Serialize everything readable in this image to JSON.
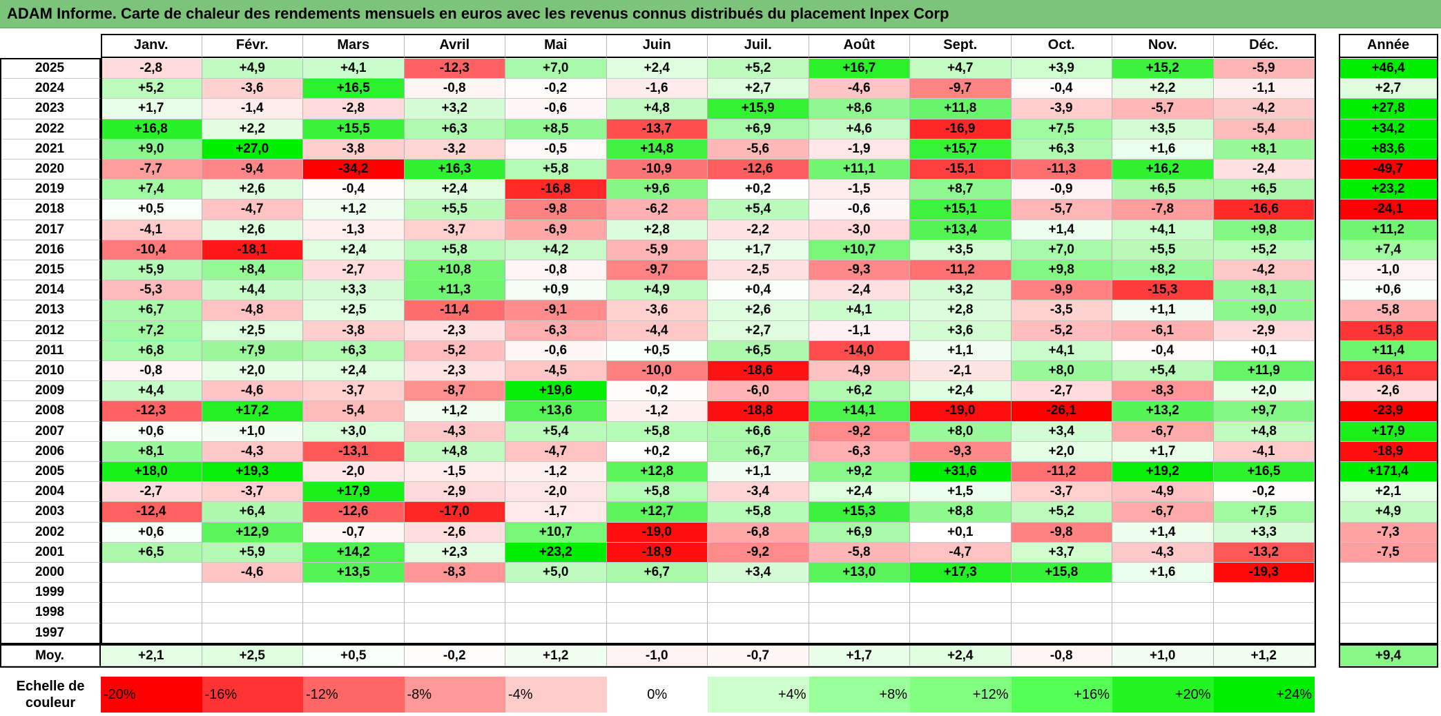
{
  "title": "ADAM Informe. Carte de chaleur des rendements mensuels en euros avec les revenus connus distribués du placement Inpex Corp",
  "chart_data": {
    "type": "heatmap",
    "columns": [
      "Janv.",
      "Févr.",
      "Mars",
      "Avril",
      "Mai",
      "Juin",
      "Juil.",
      "Août",
      "Sept.",
      "Oct.",
      "Nov.",
      "Déc."
    ],
    "year_column_label": "Année",
    "rows": [
      {
        "year": "2025",
        "values": [
          "-2,8",
          "+4,9",
          "+4,1",
          "-12,3",
          "+7,0",
          "+2,4",
          "+5,2",
          "+16,7",
          "+4,7",
          "+3,9",
          "+15,2",
          "-5,9"
        ],
        "annual": "+46,4"
      },
      {
        "year": "2024",
        "values": [
          "+5,2",
          "-3,6",
          "+16,5",
          "-0,8",
          "-0,2",
          "-1,6",
          "+2,7",
          "-4,6",
          "-9,7",
          "-0,4",
          "+2,2",
          "-1,1"
        ],
        "annual": "+2,7"
      },
      {
        "year": "2023",
        "values": [
          "+1,7",
          "-1,4",
          "-2,8",
          "+3,2",
          "-0,6",
          "+4,8",
          "+15,9",
          "+8,6",
          "+11,8",
          "-3,9",
          "-5,7",
          "-4,2"
        ],
        "annual": "+27,8"
      },
      {
        "year": "2022",
        "values": [
          "+16,8",
          "+2,2",
          "+15,5",
          "+6,3",
          "+8,5",
          "-13,7",
          "+6,9",
          "+4,6",
          "-16,9",
          "+7,5",
          "+3,5",
          "-5,4"
        ],
        "annual": "+34,2"
      },
      {
        "year": "2021",
        "values": [
          "+9,0",
          "+27,0",
          "-3,8",
          "-3,2",
          "-0,5",
          "+14,8",
          "-5,6",
          "-1,9",
          "+15,7",
          "+6,3",
          "+1,6",
          "+8,1"
        ],
        "annual": "+83,6"
      },
      {
        "year": "2020",
        "values": [
          "-7,7",
          "-9,4",
          "-34,2",
          "+16,3",
          "+5,8",
          "-10,9",
          "-12,6",
          "+11,1",
          "-15,1",
          "-11,3",
          "+16,2",
          "-2,4"
        ],
        "annual": "-49,7"
      },
      {
        "year": "2019",
        "values": [
          "+7,4",
          "+2,6",
          "-0,4",
          "+2,4",
          "-16,8",
          "+9,6",
          "+0,2",
          "-1,5",
          "+8,7",
          "-0,9",
          "+6,5",
          "+6,5"
        ],
        "annual": "+23,2"
      },
      {
        "year": "2018",
        "values": [
          "+0,5",
          "-4,7",
          "+1,2",
          "+5,5",
          "-9,8",
          "-6,2",
          "+5,4",
          "-0,6",
          "+15,1",
          "-5,7",
          "-7,8",
          "-16,6"
        ],
        "annual": "-24,1"
      },
      {
        "year": "2017",
        "values": [
          "-4,1",
          "+2,6",
          "-1,3",
          "-3,7",
          "-6,9",
          "+2,8",
          "-2,2",
          "-3,0",
          "+13,4",
          "+1,4",
          "+4,1",
          "+9,8"
        ],
        "annual": "+11,2"
      },
      {
        "year": "2016",
        "values": [
          "-10,4",
          "-18,1",
          "+2,4",
          "+5,8",
          "+4,2",
          "-5,9",
          "+1,7",
          "+10,7",
          "+3,5",
          "+7,0",
          "+5,5",
          "+5,2"
        ],
        "annual": "+7,4"
      },
      {
        "year": "2015",
        "values": [
          "+5,9",
          "+8,4",
          "-2,7",
          "+10,8",
          "-0,8",
          "-9,7",
          "-2,5",
          "-9,3",
          "-11,2",
          "+9,8",
          "+8,2",
          "-4,2"
        ],
        "annual": "-1,0"
      },
      {
        "year": "2014",
        "values": [
          "-5,3",
          "+4,4",
          "+3,3",
          "+11,3",
          "+0,9",
          "+4,9",
          "+0,4",
          "-2,4",
          "+3,2",
          "-9,9",
          "-15,3",
          "+8,1"
        ],
        "annual": "+0,6"
      },
      {
        "year": "2013",
        "values": [
          "+6,7",
          "-4,8",
          "+2,5",
          "-11,4",
          "-9,1",
          "-3,6",
          "+2,6",
          "+4,1",
          "+2,8",
          "-3,5",
          "+1,1",
          "+9,0"
        ],
        "annual": "-5,8"
      },
      {
        "year": "2012",
        "values": [
          "+7,2",
          "+2,5",
          "-3,8",
          "-2,3",
          "-6,3",
          "-4,4",
          "+2,7",
          "-1,1",
          "+3,6",
          "-5,2",
          "-6,1",
          "-2,9"
        ],
        "annual": "-15,8"
      },
      {
        "year": "2011",
        "values": [
          "+6,8",
          "+7,9",
          "+6,3",
          "-5,2",
          "-0,6",
          "+0,5",
          "+6,5",
          "-14,0",
          "+1,1",
          "+4,1",
          "-0,4",
          "+0,1"
        ],
        "annual": "+11,4"
      },
      {
        "year": "2010",
        "values": [
          "-0,8",
          "+2,0",
          "+2,4",
          "-2,3",
          "-4,5",
          "-10,0",
          "-18,6",
          "-4,9",
          "-2,1",
          "+8,0",
          "+5,4",
          "+11,9"
        ],
        "annual": "-16,1"
      },
      {
        "year": "2009",
        "values": [
          "+4,4",
          "-4,6",
          "-3,7",
          "-8,7",
          "+19,6",
          "-0,2",
          "-6,0",
          "+6,2",
          "+2,4",
          "-2,7",
          "-8,3",
          "+2,0"
        ],
        "annual": "-2,6"
      },
      {
        "year": "2008",
        "values": [
          "-12,3",
          "+17,2",
          "-5,4",
          "+1,2",
          "+13,6",
          "-1,2",
          "-18,8",
          "+14,1",
          "-19,0",
          "-26,1",
          "+13,2",
          "+9,7"
        ],
        "annual": "-23,9"
      },
      {
        "year": "2007",
        "values": [
          "+0,6",
          "+1,0",
          "+3,0",
          "-4,3",
          "+5,4",
          "+5,8",
          "+6,6",
          "-9,2",
          "+8,0",
          "+3,4",
          "-6,7",
          "+4,8"
        ],
        "annual": "+17,9"
      },
      {
        "year": "2006",
        "values": [
          "+8,1",
          "-4,3",
          "-13,1",
          "+4,8",
          "-4,7",
          "+0,2",
          "+6,7",
          "-6,3",
          "-9,3",
          "+2,0",
          "+1,7",
          "-4,1"
        ],
        "annual": "-18,9"
      },
      {
        "year": "2005",
        "values": [
          "+18,0",
          "+19,3",
          "-2,0",
          "-1,5",
          "-1,2",
          "+12,8",
          "+1,1",
          "+9,2",
          "+31,6",
          "-11,2",
          "+19,2",
          "+16,5"
        ],
        "annual": "+171,4"
      },
      {
        "year": "2004",
        "values": [
          "-2,7",
          "-3,7",
          "+17,9",
          "-2,9",
          "-2,0",
          "+5,8",
          "-3,4",
          "+2,4",
          "+1,5",
          "-3,7",
          "-4,9",
          "-0,2"
        ],
        "annual": "+2,1"
      },
      {
        "year": "2003",
        "values": [
          "-12,4",
          "+6,4",
          "-12,6",
          "-17,0",
          "-1,7",
          "+12,7",
          "+5,8",
          "+15,3",
          "+8,8",
          "+5,2",
          "-6,7",
          "+7,5"
        ],
        "annual": "+4,9"
      },
      {
        "year": "2002",
        "values": [
          "+0,6",
          "+12,9",
          "-0,7",
          "-2,6",
          "+10,7",
          "-19,0",
          "-6,8",
          "+6,9",
          "+0,1",
          "-9,8",
          "+1,4",
          "+3,3"
        ],
        "annual": "-7,3"
      },
      {
        "year": "2001",
        "values": [
          "+6,5",
          "+5,9",
          "+14,2",
          "+2,3",
          "+23,2",
          "-18,9",
          "-9,2",
          "-5,8",
          "-4,7",
          "+3,7",
          "-4,3",
          "-13,2"
        ],
        "annual": "-7,5"
      },
      {
        "year": "2000",
        "values": [
          "",
          "-4,6",
          "+13,5",
          "-8,3",
          "+5,0",
          "+6,7",
          "+3,4",
          "+13,0",
          "+17,3",
          "+15,8",
          "+1,6",
          "-19,3"
        ],
        "annual": ""
      },
      {
        "year": "1999",
        "values": [
          "",
          "",
          "",
          "",
          "",
          "",
          "",
          "",
          "",
          "",
          "",
          ""
        ],
        "annual": ""
      },
      {
        "year": "1998",
        "values": [
          "",
          "",
          "",
          "",
          "",
          "",
          "",
          "",
          "",
          "",
          "",
          ""
        ],
        "annual": ""
      },
      {
        "year": "1997",
        "values": [
          "",
          "",
          "",
          "",
          "",
          "",
          "",
          "",
          "",
          "",
          "",
          ""
        ],
        "annual": ""
      }
    ],
    "average": {
      "label": "Moy.",
      "values": [
        "+2,1",
        "+2,5",
        "+0,5",
        "-0,2",
        "+1,2",
        "-1,0",
        "-0,7",
        "+1,7",
        "+2,4",
        "-0,8",
        "+1,0",
        "+1,2"
      ],
      "annual": "+9,4"
    },
    "scale": {
      "label": "Echelle de couleur",
      "steps": [
        {
          "text": "-20%",
          "color": "#ff0000"
        },
        {
          "text": "-16%",
          "color": "#ff3333"
        },
        {
          "text": "-12%",
          "color": "#ff6666"
        },
        {
          "text": "-8%",
          "color": "#ff9999"
        },
        {
          "text": "-4%",
          "color": "#ffcccc"
        },
        {
          "text": "0%",
          "color": "#ffffff"
        },
        {
          "text": "+4%",
          "color": "#ccffcc"
        },
        {
          "text": "+8%",
          "color": "#99ff99"
        },
        {
          "text": "+12%",
          "color": "#80ff80"
        },
        {
          "text": "+16%",
          "color": "#55ff55"
        },
        {
          "text": "+20%",
          "color": "#22f522"
        },
        {
          "text": "+24%",
          "color": "#00ee00"
        }
      ]
    }
  }
}
